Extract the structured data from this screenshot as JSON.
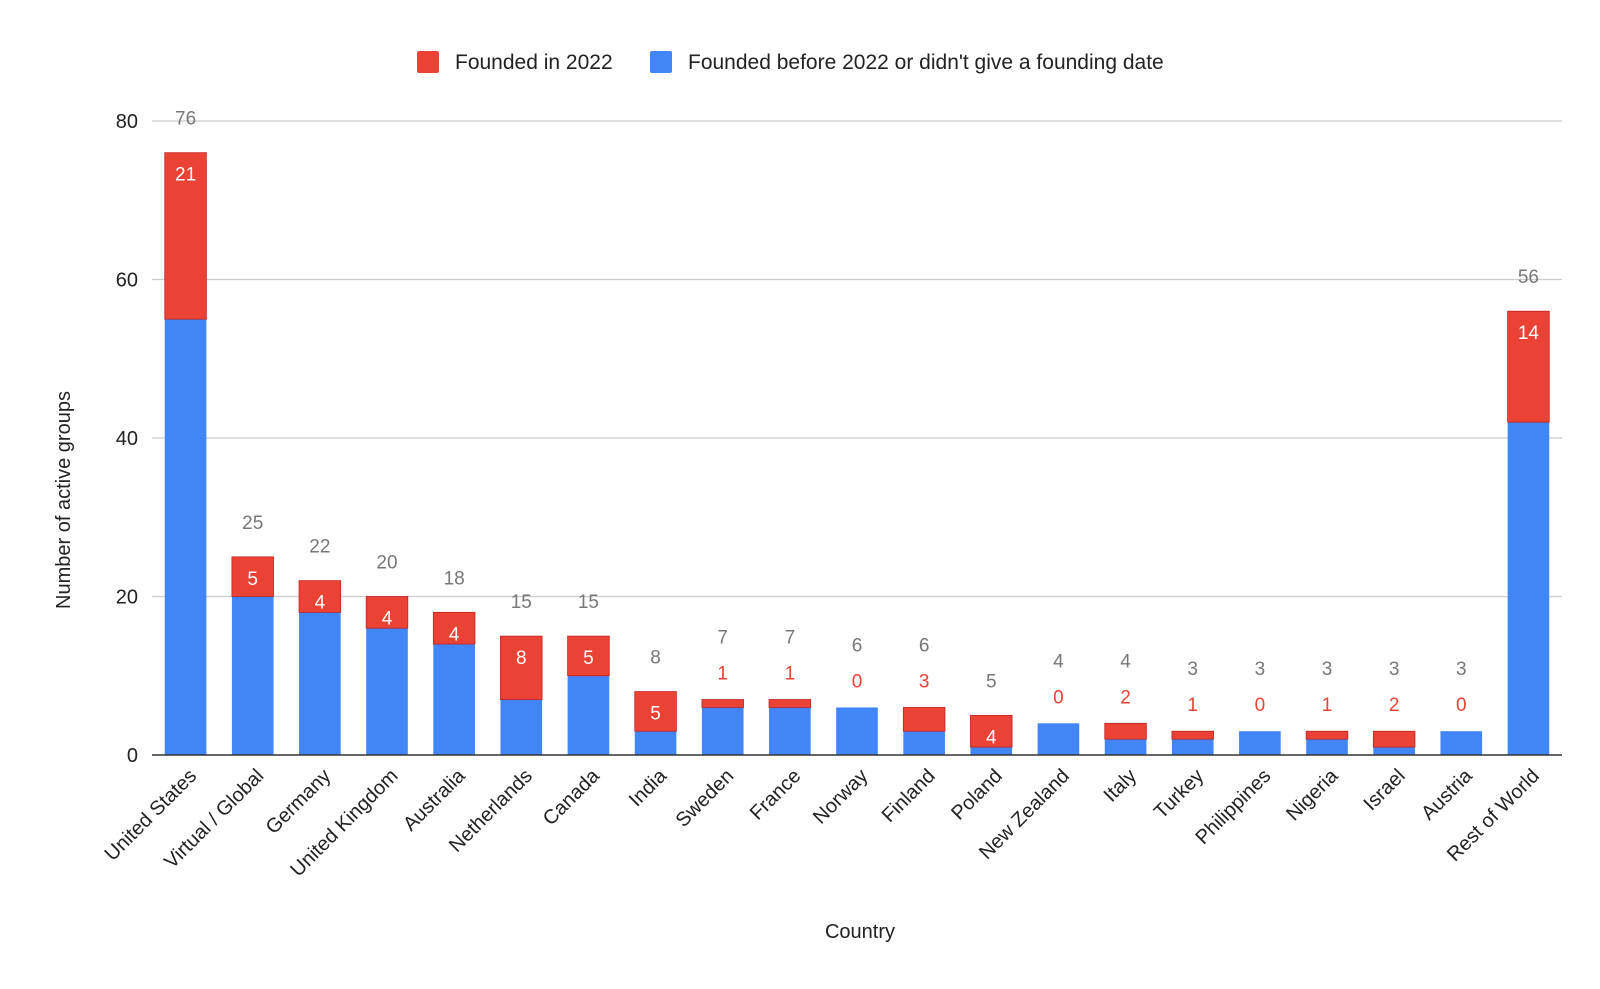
{
  "chart_data": {
    "type": "bar",
    "stacked": true,
    "title": "",
    "xlabel": "Country",
    "ylabel": "Number of active groups",
    "ylim": [
      0,
      80
    ],
    "yticks": [
      0,
      20,
      40,
      60,
      80
    ],
    "grid": true,
    "legend_position": "top",
    "categories": [
      "United States",
      "Virtual / Global",
      "Germany",
      "United Kingdom",
      "Australia",
      "Netherlands",
      "Canada",
      "India",
      "Sweden",
      "France",
      "Norway",
      "Finland",
      "Poland",
      "New Zealand",
      "Italy",
      "Turkey",
      "Philippines",
      "Nigeria",
      "Israel",
      "Austria",
      "Rest of World"
    ],
    "series": [
      {
        "name": "Founded before 2022 or didn't give a founding date",
        "color": "#4285f4",
        "values": [
          55,
          20,
          18,
          16,
          14,
          7,
          10,
          3,
          6,
          6,
          6,
          3,
          1,
          4,
          2,
          2,
          3,
          2,
          1,
          3,
          42
        ]
      },
      {
        "name": "Founded in 2022",
        "color": "#ea4335",
        "values": [
          21,
          5,
          4,
          4,
          4,
          8,
          5,
          5,
          1,
          1,
          0,
          3,
          4,
          0,
          2,
          1,
          0,
          1,
          2,
          0,
          14
        ]
      }
    ],
    "totals": [
      76,
      25,
      22,
      20,
      18,
      15,
      15,
      8,
      7,
      7,
      6,
      6,
      5,
      4,
      4,
      3,
      3,
      3,
      3,
      3,
      56
    ],
    "legend_order": [
      "Founded in 2022",
      "Founded before 2022 or didn't give a founding date"
    ]
  }
}
